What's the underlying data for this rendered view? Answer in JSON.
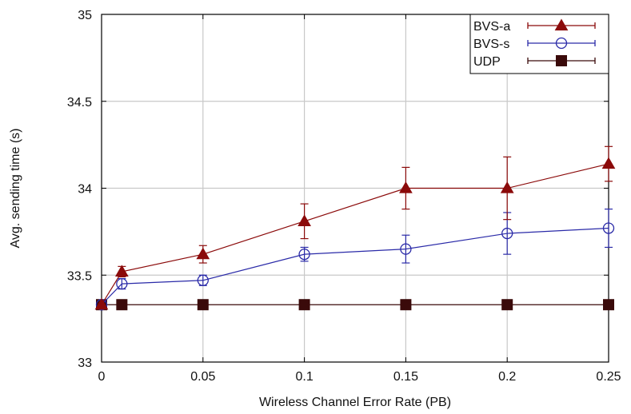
{
  "chart_data": {
    "type": "line",
    "xlabel": "Wireless Channel Error Rate (PB)",
    "ylabel": "Avg. sending time (s)",
    "xlim": [
      0,
      0.25
    ],
    "ylim": [
      33,
      35
    ],
    "xticks": [
      "0",
      "0.05",
      "0.1",
      "0.15",
      "0.2",
      "0.25"
    ],
    "yticks": [
      "33",
      "33.5",
      "34",
      "34.5",
      "35"
    ],
    "grid": true,
    "legend_position": "top-right",
    "x": [
      0,
      0.01,
      0.05,
      0.1,
      0.15,
      0.2,
      0.25
    ],
    "series": [
      {
        "name": "BVS-a",
        "color": "#8b0a0a",
        "marker": "filled-triangle",
        "values": [
          33.33,
          33.52,
          33.62,
          33.81,
          34.0,
          34.0,
          34.14
        ],
        "errors": [
          0,
          0.03,
          0.05,
          0.1,
          0.12,
          0.18,
          0.1
        ]
      },
      {
        "name": "BVS-s",
        "color": "#2a2aa8",
        "marker": "open-circle",
        "values": [
          33.33,
          33.45,
          33.47,
          33.62,
          33.65,
          33.74,
          33.77
        ],
        "errors": [
          0,
          0.03,
          0.03,
          0.04,
          0.08,
          0.12,
          0.11
        ]
      },
      {
        "name": "UDP",
        "color": "#3a0a0a",
        "marker": "filled-square",
        "values": [
          33.33,
          33.33,
          33.33,
          33.33,
          33.33,
          33.33,
          33.33
        ],
        "errors": [
          0,
          0,
          0,
          0,
          0,
          0,
          0
        ]
      }
    ]
  }
}
